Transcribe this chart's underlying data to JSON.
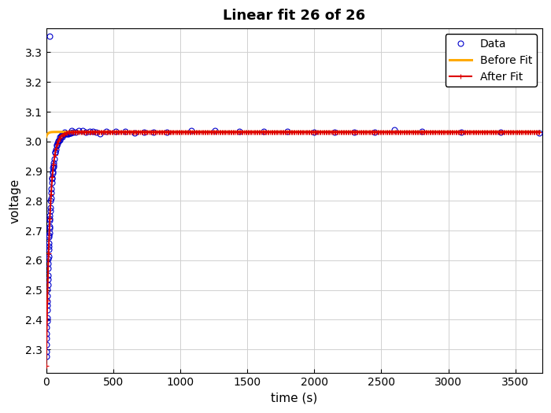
{
  "title": "Linear fit 26 of 26",
  "xlabel": "time (s)",
  "ylabel": "voltage",
  "xlim": [
    0,
    3700
  ],
  "ylim": [
    2.22,
    3.38
  ],
  "xticks": [
    0,
    500,
    1000,
    1500,
    2000,
    2500,
    3000,
    3500
  ],
  "yticks": [
    2.3,
    2.4,
    2.5,
    2.6,
    2.7,
    2.8,
    2.9,
    3.0,
    3.1,
    3.2,
    3.3
  ],
  "data_color": "#0000cc",
  "before_color": "#ffaa00",
  "after_color": "#dd0000",
  "legend_labels": [
    "Data",
    "Before Fit",
    "After Fit"
  ],
  "v_inf": 3.032,
  "v0_data": 2.245,
  "tau_after": 28.0,
  "v_before_flat": 3.032,
  "spike_time": 25,
  "spike_value": 3.355,
  "t_max": 3680
}
